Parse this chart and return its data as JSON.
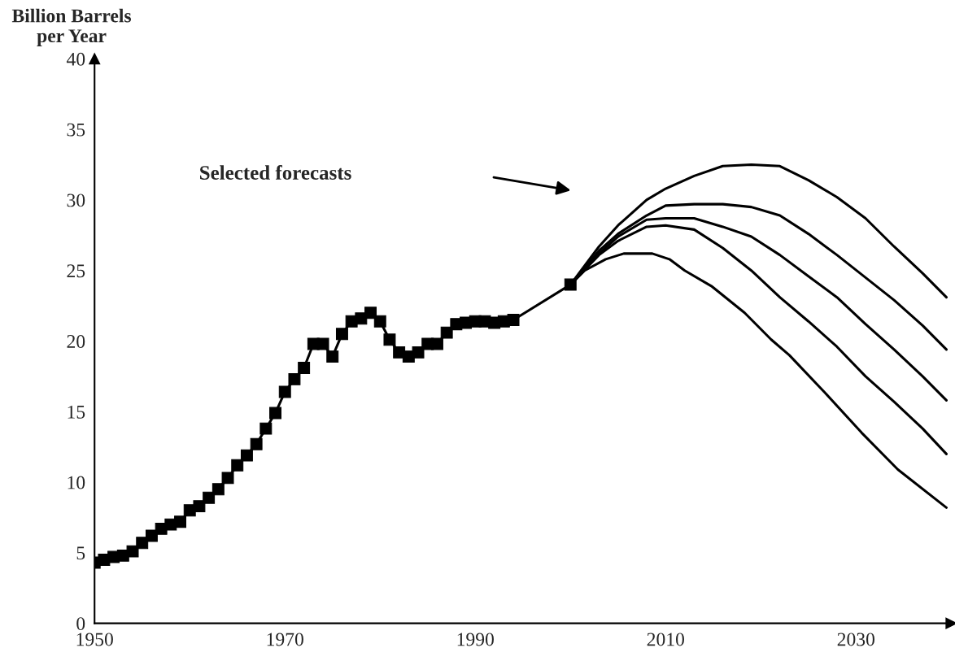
{
  "chart_data": {
    "type": "line",
    "ylabel": "Billion Barrels\nper Year",
    "annotations": [
      "Selected forecasts"
    ],
    "xlim": [
      1950,
      2040
    ],
    "xticks": [
      1950,
      1970,
      1990,
      2010,
      2030
    ],
    "ylim": [
      0,
      40
    ],
    "yticks": [
      0,
      5,
      10,
      15,
      20,
      25,
      30,
      35,
      40
    ],
    "grid": false,
    "legend": false,
    "line_style": "solid",
    "series": [
      {
        "color": "#000000",
        "marker": "square",
        "x": [
          1950,
          1951,
          1952,
          1953,
          1954,
          1955,
          1956,
          1957,
          1958,
          1959,
          1960,
          1961,
          1962,
          1963,
          1964,
          1965,
          1966,
          1967,
          1968,
          1969,
          1970,
          1971,
          1972,
          1973,
          1974,
          1975,
          1976,
          1977,
          1978,
          1979,
          1980,
          1981,
          1982,
          1983,
          1984,
          1985,
          1986,
          1987,
          1988,
          1989,
          1990,
          1991,
          1992,
          1993,
          1994,
          2000
        ],
        "values": [
          4.3,
          4.5,
          4.7,
          4.8,
          5.1,
          5.7,
          6.2,
          6.7,
          7.0,
          7.2,
          8.0,
          8.3,
          8.9,
          9.5,
          10.3,
          11.2,
          11.9,
          12.7,
          13.8,
          14.9,
          16.4,
          17.3,
          18.1,
          19.8,
          19.8,
          18.9,
          20.5,
          21.4,
          21.6,
          22.0,
          21.4,
          20.1,
          19.2,
          18.9,
          19.2,
          19.8,
          19.8,
          20.6,
          21.2,
          21.3,
          21.4,
          21.4,
          21.3,
          21.4,
          21.5,
          24.0
        ]
      },
      {
        "color": "#000000",
        "marker": "none",
        "x": [
          2000,
          2003,
          2005,
          2008,
          2010,
          2013,
          2016,
          2019,
          2022,
          2025,
          2028,
          2031,
          2034,
          2037,
          2039.5
        ],
        "values": [
          24.0,
          26.7,
          28.2,
          30.0,
          30.8,
          31.7,
          32.4,
          32.5,
          32.4,
          31.4,
          30.2,
          28.7,
          26.7,
          24.8,
          23.1
        ]
      },
      {
        "color": "#000000",
        "marker": "none",
        "x": [
          2000,
          2003,
          2005,
          2008,
          2010,
          2013,
          2016,
          2019,
          2022,
          2025,
          2028,
          2031,
          2034,
          2037,
          2039.5
        ],
        "values": [
          24.0,
          26.4,
          27.6,
          28.9,
          29.6,
          29.7,
          29.7,
          29.5,
          28.9,
          27.6,
          26.1,
          24.5,
          22.9,
          21.1,
          19.4
        ]
      },
      {
        "color": "#000000",
        "marker": "none",
        "x": [
          2000,
          2003,
          2005,
          2008,
          2010,
          2013,
          2016,
          2019,
          2022,
          2025,
          2028,
          2031,
          2034,
          2037,
          2039.5
        ],
        "values": [
          24.0,
          26.2,
          27.4,
          28.6,
          28.7,
          28.7,
          28.1,
          27.4,
          26.1,
          24.6,
          23.1,
          21.2,
          19.4,
          17.5,
          15.8
        ]
      },
      {
        "color": "#000000",
        "marker": "none",
        "x": [
          2000,
          2003,
          2005,
          2008,
          2010,
          2013,
          2016,
          2019,
          2022,
          2025,
          2028,
          2031,
          2034,
          2037,
          2039.5
        ],
        "values": [
          24.0,
          26.1,
          27.1,
          28.1,
          28.2,
          27.9,
          26.6,
          25.0,
          23.1,
          21.4,
          19.6,
          17.5,
          15.7,
          13.8,
          12.0
        ]
      },
      {
        "color": "#000000",
        "marker": "none",
        "x": [
          2000,
          2001.5,
          2003.7,
          2005.6,
          2008.6,
          2010.4,
          2012,
          2014.8,
          2018.3,
          2021.1,
          2023,
          2026.8,
          2030.6,
          2034.4,
          2039.5
        ],
        "values": [
          24.0,
          25.0,
          25.8,
          26.2,
          26.2,
          25.8,
          25.0,
          23.9,
          22.0,
          20.1,
          19.0,
          16.3,
          13.5,
          10.9,
          8.2
        ]
      }
    ]
  }
}
